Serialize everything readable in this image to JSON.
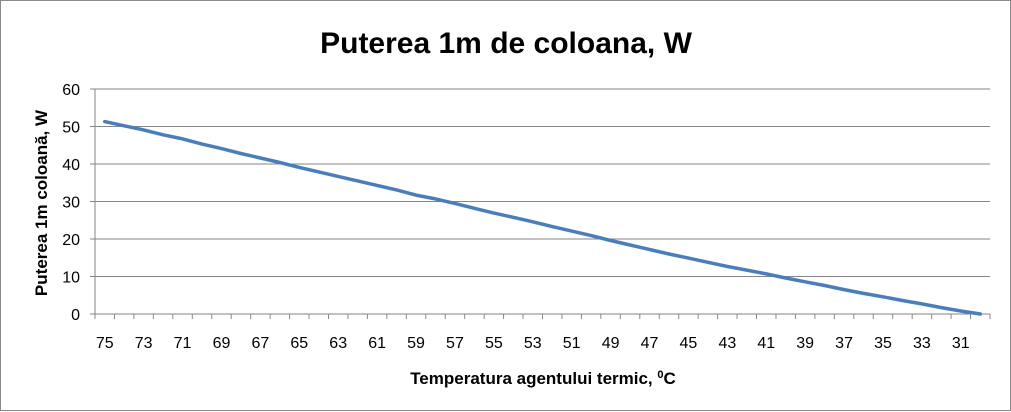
{
  "chart_data": {
    "type": "line",
    "title": "Puterea 1m de coloana, W",
    "xlabel": "Temperatura agentului termic, ",
    "xlabel_sup": "0",
    "xlabel_unit": "C",
    "ylabel": "Puterea 1m coloană, W",
    "ylim": [
      0,
      60
    ],
    "yticks": [
      0,
      10,
      20,
      30,
      40,
      50,
      60
    ],
    "grid": true,
    "x": [
      75,
      74,
      73,
      72,
      71,
      70,
      69,
      68,
      67,
      66,
      65,
      64,
      63,
      62,
      61,
      60,
      59,
      58,
      57,
      56,
      55,
      54,
      53,
      52,
      51,
      50,
      49,
      48,
      47,
      46,
      45,
      44,
      43,
      42,
      41,
      40,
      39,
      38,
      37,
      36,
      35,
      34,
      33,
      32,
      31,
      30
    ],
    "x_tick_labels": [
      "75",
      "73",
      "71",
      "69",
      "67",
      "65",
      "63",
      "61",
      "59",
      "57",
      "55",
      "53",
      "51",
      "49",
      "47",
      "45",
      "43",
      "41",
      "39",
      "37",
      "35",
      "33",
      "31"
    ],
    "series": [
      {
        "color": "#4a7ebb",
        "values": [
          51.3,
          50.2,
          49.1,
          47.8,
          46.7,
          45.3,
          44.1,
          42.8,
          41.6,
          40.4,
          39.1,
          37.9,
          36.7,
          35.5,
          34.3,
          33.1,
          31.7,
          30.7,
          29.5,
          28.2,
          26.9,
          25.8,
          24.6,
          23.3,
          22.1,
          20.9,
          19.6,
          18.4,
          17.2,
          16.0,
          14.9,
          13.8,
          12.7,
          11.7,
          10.7,
          9.6,
          8.6,
          7.6,
          6.5,
          5.5,
          4.6,
          3.6,
          2.7,
          1.7,
          0.8,
          0.0
        ]
      }
    ],
    "colors": {
      "grid": "#868686",
      "axis": "#868686",
      "frame": "#898989"
    }
  }
}
